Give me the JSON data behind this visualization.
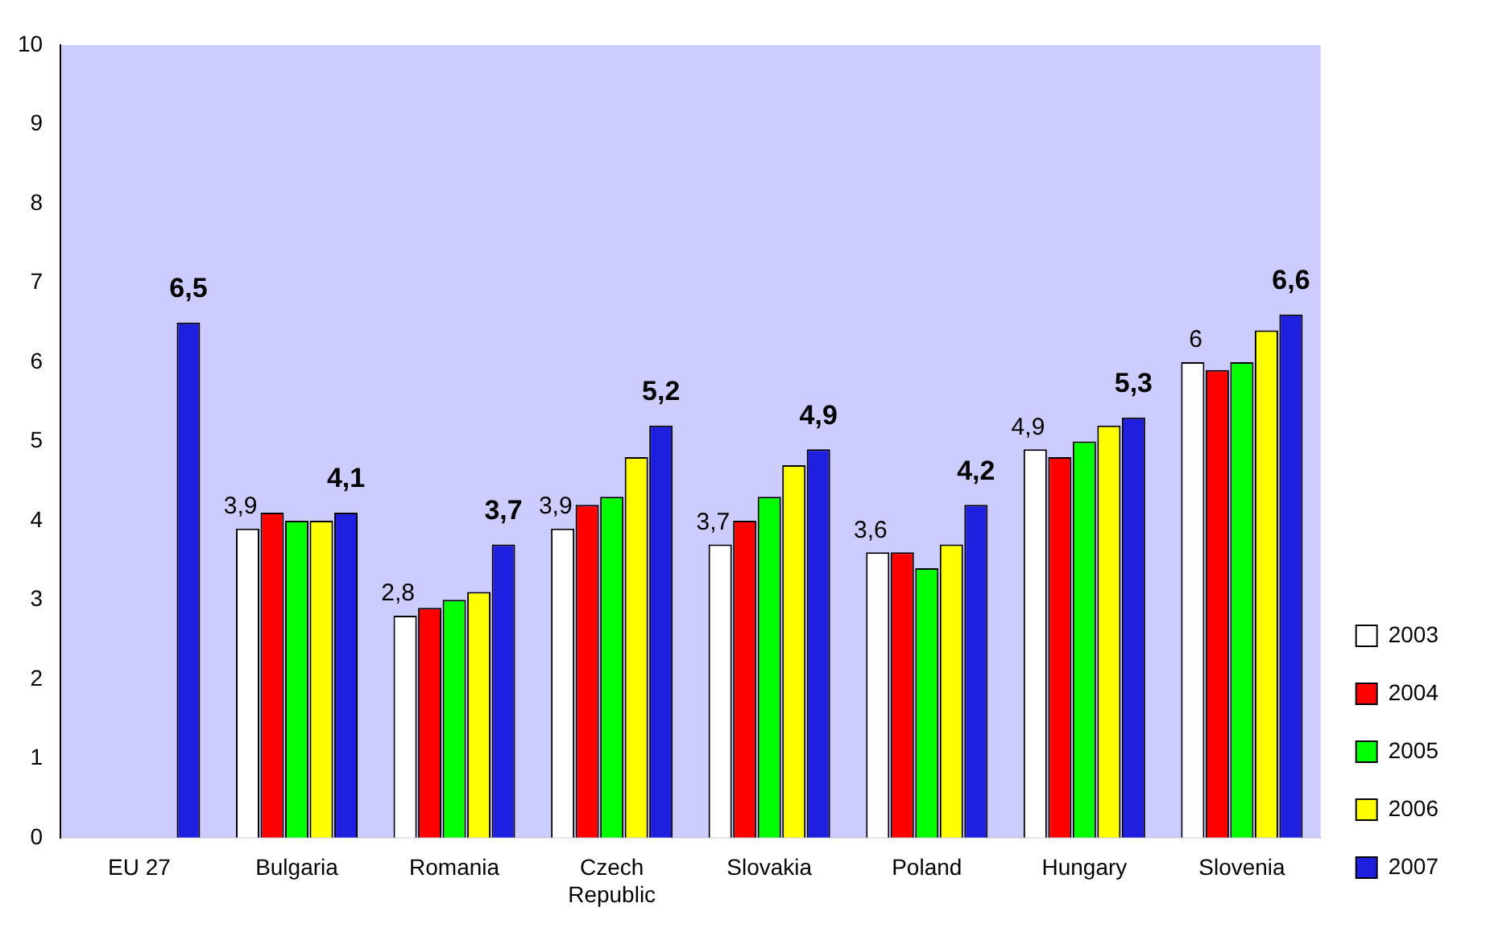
{
  "chart_data": {
    "type": "bar",
    "categories": [
      "EU 27",
      "Bulgaria",
      "Romania",
      "Czech Republic",
      "Slovakia",
      "Poland",
      "Hungary",
      "Slovenia"
    ],
    "series": [
      {
        "name": "2003",
        "color": "#ffffff",
        "values": [
          null,
          3.9,
          2.8,
          3.9,
          3.7,
          3.6,
          4.9,
          6
        ],
        "value_labels": [
          null,
          "3,9",
          "2,8",
          "3,9",
          "3,7",
          "3,6",
          "4,9",
          "6"
        ]
      },
      {
        "name": "2004",
        "color": "#ff0000",
        "values": [
          null,
          4.1,
          2.9,
          4.2,
          4.0,
          3.6,
          4.8,
          5.9
        ]
      },
      {
        "name": "2005",
        "color": "#00ff00",
        "values": [
          null,
          4.0,
          3.0,
          4.3,
          4.3,
          3.4,
          5.0,
          6.0
        ]
      },
      {
        "name": "2006",
        "color": "#ffff00",
        "values": [
          null,
          4.0,
          3.1,
          4.8,
          4.7,
          3.7,
          5.2,
          6.4
        ]
      },
      {
        "name": "2007",
        "color": "#1f1fe0",
        "values": [
          6.5,
          4.1,
          3.7,
          5.2,
          4.9,
          4.2,
          5.3,
          6.6
        ],
        "value_labels": [
          "6,5",
          "4,1",
          "3,7",
          "5,2",
          "4,9",
          "4,2",
          "5,3",
          "6,6"
        ]
      }
    ],
    "ylim": [
      0,
      10
    ],
    "yticks": [
      0,
      1,
      2,
      3,
      4,
      5,
      6,
      7,
      8,
      9,
      10
    ],
    "grid": false,
    "legend": "bottom right"
  }
}
